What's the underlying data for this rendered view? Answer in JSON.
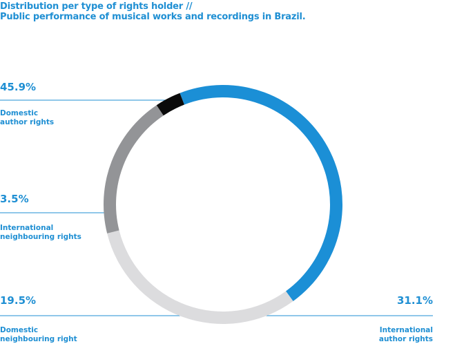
{
  "chart_data": {
    "type": "pie",
    "variant": "donut",
    "title_lines": [
      "Distribution per type of rights holder //",
      "Public performance of musical works and recordings in Brazil."
    ],
    "slices": [
      {
        "label": "Domestic\nauthor rights",
        "value": 45.9,
        "value_label": "45.9%",
        "color": "#1b8fd6"
      },
      {
        "label": "International\nauthor rights",
        "value": 31.1,
        "value_label": "31.1%",
        "color": "#dcdcde"
      },
      {
        "label": "Domestic\nneighbouring right",
        "value": 19.5,
        "value_label": "19.5%",
        "color": "#939497"
      },
      {
        "label": "International\nneighbouring rights",
        "value": 3.5,
        "value_label": "3.5%",
        "color": "#0a0a0a"
      }
    ],
    "legend": "none",
    "grid": false
  },
  "colors": {
    "text_accent": "#1f8fd3",
    "leader_line": "#1f8fd3"
  }
}
